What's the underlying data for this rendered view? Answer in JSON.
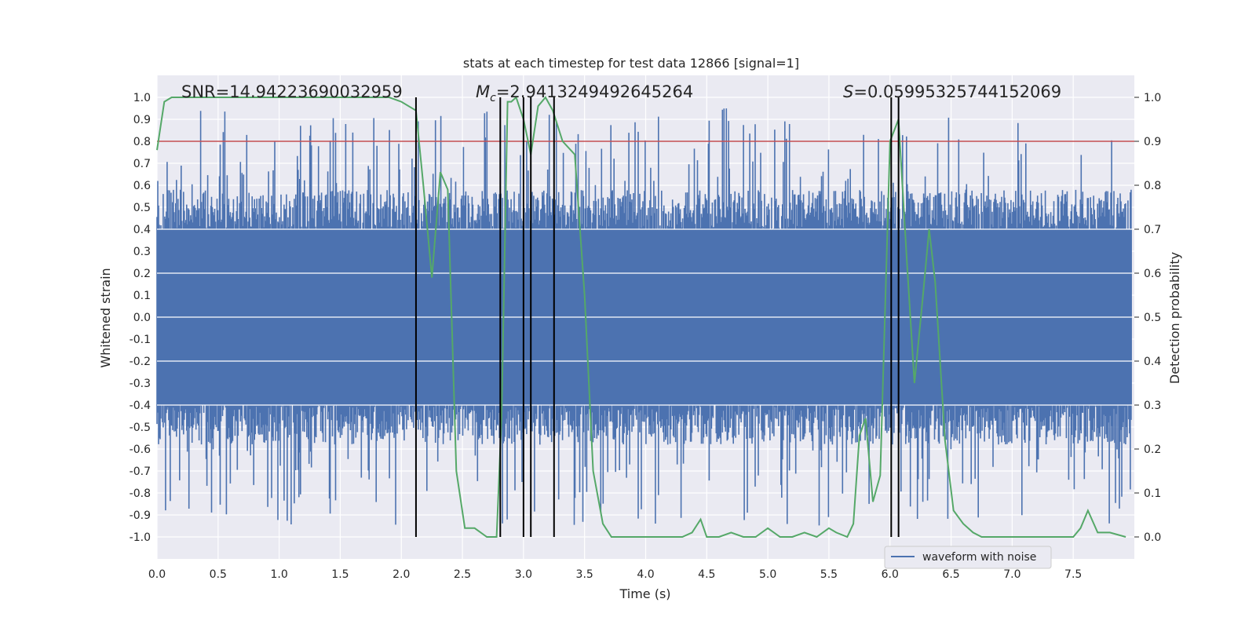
{
  "chart_data": {
    "type": "line",
    "title": "stats at each timestep for test data 12866 [signal=1]",
    "xlabel": "Time (s)",
    "ylabel": "Whitened strain",
    "y2label": "Detection probability",
    "xlim": [
      0,
      8
    ],
    "ylim": [
      -1.1,
      1.1
    ],
    "y2lim": [
      -0.05,
      1.05
    ],
    "xticks": [
      "0.0",
      "0.5",
      "1.0",
      "1.5",
      "2.0",
      "2.5",
      "3.0",
      "3.5",
      "4.0",
      "4.5",
      "5.0",
      "5.5",
      "6.0",
      "6.5",
      "7.0",
      "7.5"
    ],
    "yticks": [
      "1.0",
      "0.9",
      "0.8",
      "0.7",
      "0.6",
      "0.5",
      "0.4",
      "0.3",
      "0.2",
      "0.1",
      "0.0",
      "-0.1",
      "-0.2",
      "-0.3",
      "-0.4",
      "-0.5",
      "-0.6",
      "-0.7",
      "-0.8",
      "-0.9",
      "-1.0"
    ],
    "y2ticks": [
      "1.0",
      "0.9",
      "0.8",
      "0.7",
      "0.6",
      "0.5",
      "0.4",
      "0.3",
      "0.2",
      "0.1",
      "0.0"
    ],
    "grid": true,
    "legend_position": "lower-right",
    "colors": {
      "waveform": "#4c72b0",
      "probability": "#55a868",
      "threshold": "#c44e52",
      "markers": "#000000",
      "plot_bg": "#eaeaf2",
      "grid": "#ffffff"
    },
    "annotations": {
      "snr": "SNR=14.94223690032959",
      "mc_symbol": "M",
      "mc_sub": "c",
      "mc_value": "=2.9413249492645264",
      "s_symbol": "S",
      "s_value": "=0.05995325744152069"
    },
    "series": [
      {
        "name": "waveform with noise",
        "axis": "left",
        "description": "dense noisy strain, core band about ±0.4, peaks about ±1.0"
      },
      {
        "axis": "right",
        "x": [
          0.0,
          0.06,
          0.12,
          0.4,
          0.8,
          1.2,
          1.6,
          1.9,
          2.0,
          2.12,
          2.18,
          2.25,
          2.32,
          2.38,
          2.45,
          2.52,
          2.6,
          2.7,
          2.78,
          2.82,
          2.87,
          2.9,
          2.94,
          3.0,
          3.06,
          3.12,
          3.18,
          3.24,
          3.32,
          3.42,
          3.5,
          3.57,
          3.65,
          3.72,
          3.8,
          4.0,
          4.3,
          4.38,
          4.45,
          4.5,
          4.6,
          4.7,
          4.8,
          4.9,
          5.0,
          5.1,
          5.2,
          5.3,
          5.4,
          5.5,
          5.56,
          5.65,
          5.7,
          5.75,
          5.8,
          5.86,
          5.92,
          6.0,
          6.07,
          6.14,
          6.2,
          6.27,
          6.32,
          6.37,
          6.45,
          6.52,
          6.6,
          6.68,
          6.75,
          6.9,
          7.2,
          7.4,
          7.5,
          7.56,
          7.62,
          7.7,
          7.8,
          7.93
        ],
        "values": [
          0.88,
          0.99,
          1.0,
          1.0,
          1.0,
          1.0,
          1.0,
          1.0,
          0.99,
          0.97,
          0.8,
          0.59,
          0.83,
          0.79,
          0.15,
          0.02,
          0.02,
          0.0,
          0.0,
          0.27,
          0.99,
          0.99,
          1.0,
          0.95,
          0.87,
          0.98,
          1.0,
          0.97,
          0.9,
          0.87,
          0.55,
          0.15,
          0.03,
          0.0,
          0.0,
          0.0,
          0.0,
          0.01,
          0.04,
          0.0,
          0.0,
          0.01,
          0.0,
          0.0,
          0.02,
          0.0,
          0.0,
          0.01,
          0.0,
          0.02,
          0.01,
          0.0,
          0.03,
          0.23,
          0.27,
          0.08,
          0.14,
          0.9,
          0.95,
          0.62,
          0.35,
          0.55,
          0.7,
          0.58,
          0.22,
          0.06,
          0.03,
          0.01,
          0.0,
          0.0,
          0.0,
          0.0,
          0.0,
          0.02,
          0.06,
          0.01,
          0.01,
          0.0
        ]
      }
    ],
    "threshold_right": 0.9,
    "vertical_markers_x": [
      2.12,
      2.81,
      3.0,
      3.06,
      3.25,
      6.01,
      6.07
    ]
  }
}
